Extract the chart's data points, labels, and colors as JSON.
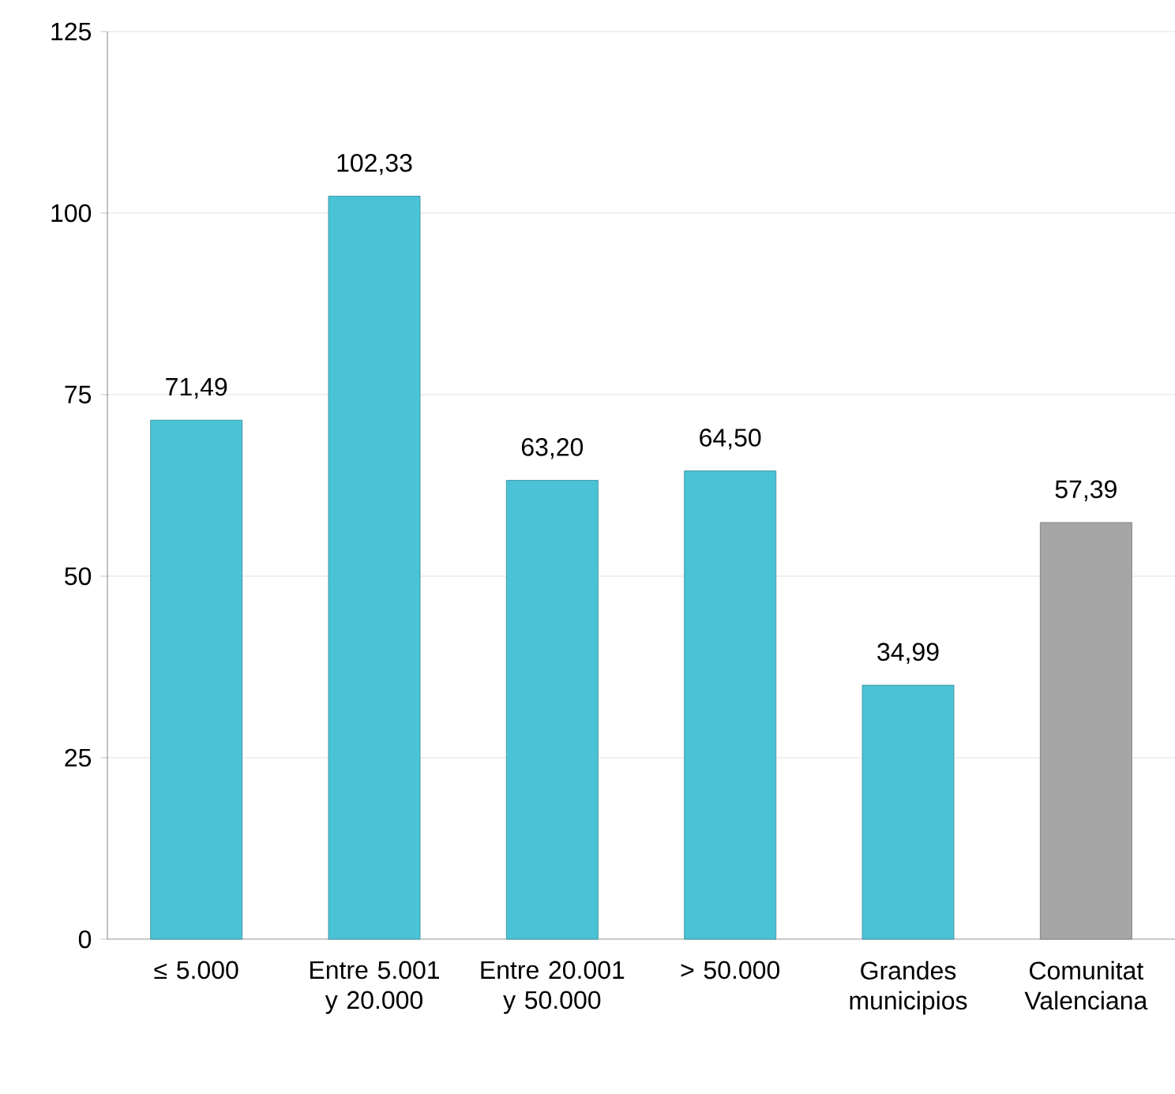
{
  "chart_data": {
    "type": "bar",
    "categories": [
      "≤ 5.000",
      "Entre 5.001 y 20.000",
      "Entre 20.001 y 50.000",
      "> 50.000",
      "Grandes municipios",
      "Comunitat Valenciana"
    ],
    "values": [
      71.49,
      102.33,
      63.2,
      64.5,
      34.99,
      57.39
    ],
    "value_labels": [
      "71,49",
      "102,33",
      "63,20",
      "64,50",
      "34,99",
      "57,39"
    ],
    "colors": [
      "#4bc3d6",
      "#4bc3d6",
      "#4bc3d6",
      "#4bc3d6",
      "#4bc3d6",
      "#a6a6a6"
    ],
    "ylim": [
      0,
      125
    ],
    "yticks": [
      0,
      25,
      50,
      75,
      100,
      125
    ],
    "grid": "y"
  }
}
